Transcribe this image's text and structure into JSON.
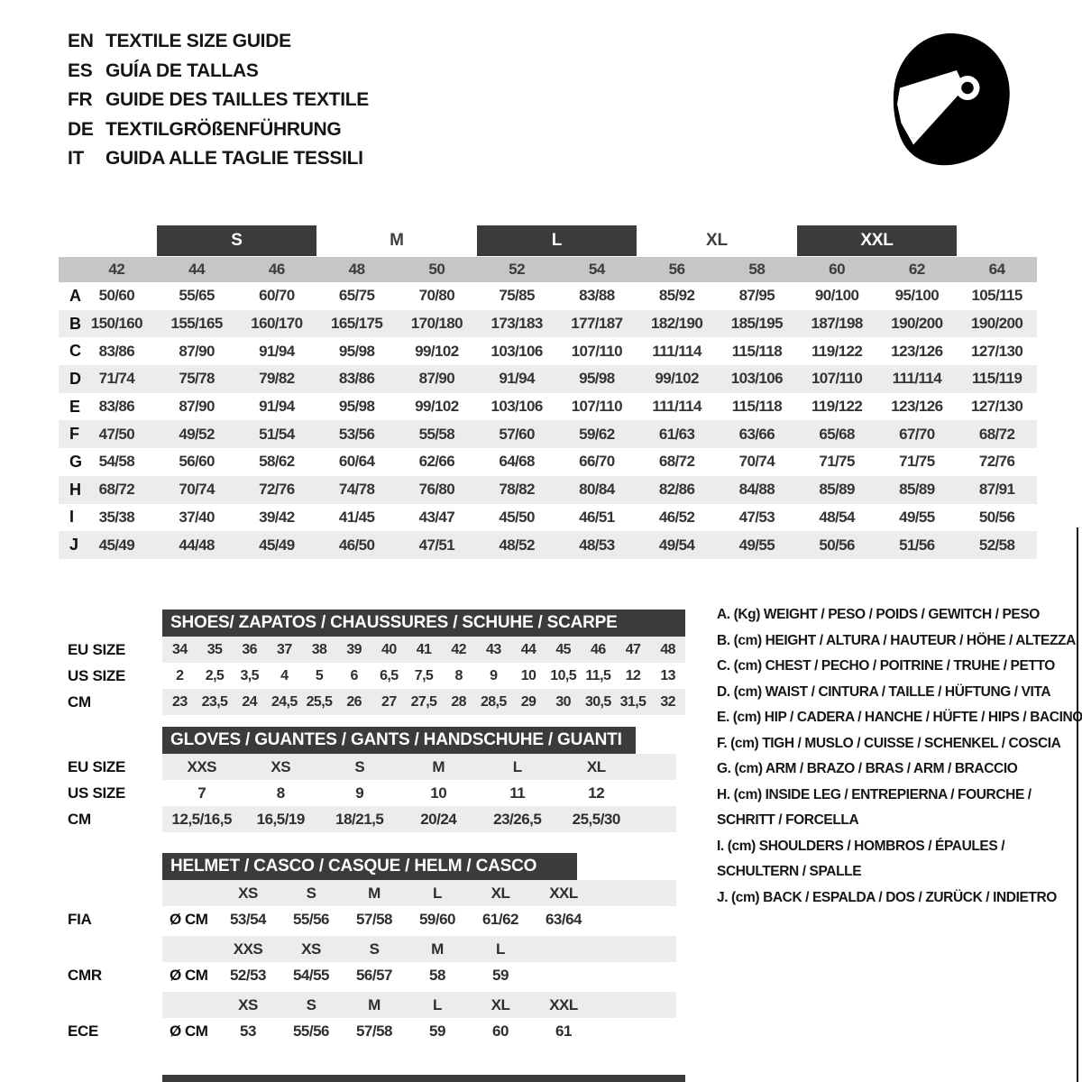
{
  "header": {
    "languages": [
      {
        "code": "EN",
        "title": "TEXTILE SIZE GUIDE"
      },
      {
        "code": "ES",
        "title": "GUÍA DE TALLAS"
      },
      {
        "code": "FR",
        "title": "GUIDE DES TAILLES TEXTILE"
      },
      {
        "code": "DE",
        "title": "TEXTILGRÖßENFÜHRUNG"
      },
      {
        "code": "IT",
        "title": "GUIDA ALLE TAGLIE TESSILI"
      }
    ]
  },
  "colors": {
    "dark_bar": "#3b3b3b",
    "band_gray": "#c6c6c6",
    "stripe_gray": "#ececec",
    "text": "#2f2f2f",
    "helmet_icon": "#000000"
  },
  "size_table": {
    "size_groups": [
      {
        "label": "S",
        "start": 1,
        "span": 2,
        "boxed": true
      },
      {
        "label": "M",
        "start": 3,
        "span": 2,
        "boxed": false
      },
      {
        "label": "L",
        "start": 5,
        "span": 2,
        "boxed": true
      },
      {
        "label": "XL",
        "start": 7,
        "span": 2,
        "boxed": false
      },
      {
        "label": "XXL",
        "start": 9,
        "span": 2,
        "boxed": true
      }
    ],
    "columns": [
      "42",
      "44",
      "46",
      "48",
      "50",
      "52",
      "54",
      "56",
      "58",
      "60",
      "62",
      "64"
    ],
    "rows": [
      {
        "label": "A",
        "values": [
          "50/60",
          "55/65",
          "60/70",
          "65/75",
          "70/80",
          "75/85",
          "83/88",
          "85/92",
          "87/95",
          "90/100",
          "95/100",
          "105/115"
        ]
      },
      {
        "label": "B",
        "values": [
          "150/160",
          "155/165",
          "160/170",
          "165/175",
          "170/180",
          "173/183",
          "177/187",
          "182/190",
          "185/195",
          "187/198",
          "190/200",
          "190/200"
        ]
      },
      {
        "label": "C",
        "values": [
          "83/86",
          "87/90",
          "91/94",
          "95/98",
          "99/102",
          "103/106",
          "107/110",
          "111/114",
          "115/118",
          "119/122",
          "123/126",
          "127/130"
        ]
      },
      {
        "label": "D",
        "values": [
          "71/74",
          "75/78",
          "79/82",
          "83/86",
          "87/90",
          "91/94",
          "95/98",
          "99/102",
          "103/106",
          "107/110",
          "111/114",
          "115/119"
        ]
      },
      {
        "label": "E",
        "values": [
          "83/86",
          "87/90",
          "91/94",
          "95/98",
          "99/102",
          "103/106",
          "107/110",
          "111/114",
          "115/118",
          "119/122",
          "123/126",
          "127/130"
        ]
      },
      {
        "label": "F",
        "values": [
          "47/50",
          "49/52",
          "51/54",
          "53/56",
          "55/58",
          "57/60",
          "59/62",
          "61/63",
          "63/66",
          "65/68",
          "67/70",
          "68/72"
        ]
      },
      {
        "label": "G",
        "values": [
          "54/58",
          "56/60",
          "58/62",
          "60/64",
          "62/66",
          "64/68",
          "66/70",
          "68/72",
          "70/74",
          "71/75",
          "71/75",
          "72/76"
        ]
      },
      {
        "label": "H",
        "values": [
          "68/72",
          "70/74",
          "72/76",
          "74/78",
          "76/80",
          "78/82",
          "80/84",
          "82/86",
          "84/88",
          "85/89",
          "85/89",
          "87/91"
        ]
      },
      {
        "label": "I",
        "values": [
          "35/38",
          "37/40",
          "39/42",
          "41/45",
          "43/47",
          "45/50",
          "46/51",
          "46/52",
          "47/53",
          "48/54",
          "49/55",
          "50/56"
        ]
      },
      {
        "label": "J",
        "values": [
          "45/49",
          "44/48",
          "45/49",
          "46/50",
          "47/51",
          "48/52",
          "48/53",
          "49/54",
          "49/55",
          "50/56",
          "51/56",
          "52/58"
        ]
      }
    ]
  },
  "shoes": {
    "title": "SHOES/ ZAPATOS / CHAUSSURES / SCHUHE / SCARPE",
    "rows": [
      {
        "label": "EU SIZE",
        "values": [
          "34",
          "35",
          "36",
          "37",
          "38",
          "39",
          "40",
          "41",
          "42",
          "43",
          "44",
          "45",
          "46",
          "47",
          "48"
        ]
      },
      {
        "label": "US SIZE",
        "values": [
          "2",
          "2,5",
          "3,5",
          "4",
          "5",
          "6",
          "6,5",
          "7,5",
          "8",
          "9",
          "10",
          "10,5",
          "11,5",
          "12",
          "13"
        ]
      },
      {
        "label": "CM",
        "values": [
          "23",
          "23,5",
          "24",
          "24,5",
          "25,5",
          "26",
          "27",
          "27,5",
          "28",
          "28,5",
          "29",
          "30",
          "30,5",
          "31,5",
          "32"
        ]
      }
    ]
  },
  "gloves": {
    "title": "GLOVES / GUANTES / GANTS / HANDSCHUHE / GUANTI",
    "rows": [
      {
        "label": "EU SIZE",
        "values": [
          "XXS",
          "XS",
          "S",
          "M",
          "L",
          "XL"
        ]
      },
      {
        "label": "US SIZE",
        "values": [
          "7",
          "8",
          "9",
          "10",
          "11",
          "12"
        ]
      },
      {
        "label": "CM",
        "values": [
          "12,5/16,5",
          "16,5/19",
          "18/21,5",
          "20/24",
          "23/26,5",
          "25,5/30"
        ]
      }
    ]
  },
  "helmet": {
    "title": "HELMET / CASCO / CASQUE / HELM / CASCO",
    "standards": [
      {
        "label": "FIA",
        "unit": "Ø CM",
        "sizes": [
          "XS",
          "S",
          "M",
          "L",
          "XL",
          "XXL"
        ],
        "values": [
          "53/54",
          "55/56",
          "57/58",
          "59/60",
          "61/62",
          "63/64"
        ]
      },
      {
        "label": "CMR",
        "unit": "Ø CM",
        "sizes": [
          "XXS",
          "XS",
          "S",
          "M",
          "L",
          ""
        ],
        "values": [
          "52/53",
          "54/55",
          "56/57",
          "58",
          "59",
          ""
        ]
      },
      {
        "label": "ECE",
        "unit": "Ø CM",
        "sizes": [
          "XS",
          "S",
          "M",
          "L",
          "XL",
          "XXL"
        ],
        "values": [
          "53",
          "55/56",
          "57/58",
          "59",
          "60",
          "61"
        ]
      }
    ]
  },
  "legend": {
    "items": [
      {
        "lines": [
          "A. (Kg) WEIGHT / PESO / POIDS / GEWITCH / PESO"
        ]
      },
      {
        "lines": [
          "B. (cm) HEIGHT / ALTURA / HAUTEUR / HÖHE / ALTEZZA"
        ]
      },
      {
        "lines": [
          "C. (cm) CHEST / PECHO / POITRINE / TRUHE / PETTO"
        ]
      },
      {
        "lines": [
          "D. (cm) WAIST / CINTURA / TAILLE / HÜFTUNG / VITA"
        ]
      },
      {
        "lines": [
          "E. (cm) HIP / CADERA / HANCHE / HÜFTE / HIPS / BACINO"
        ]
      },
      {
        "lines": [
          "F. (cm) TIGH / MUSLO / CUISSE / SCHENKEL / COSCIA"
        ]
      },
      {
        "lines": [
          "G. (cm) ARM / BRAZO / BRAS / ARM / BRACCIO"
        ]
      },
      {
        "lines": [
          "H. (cm) INSIDE LEG / ENTREPIERNA / FOURCHE /",
          "SCHRITT / FORCELLA"
        ]
      },
      {
        "lines": [
          "I. (cm) SHOULDERS / HOMBROS / ÉPAULES /",
          "SCHULTERN / SPALLE"
        ]
      },
      {
        "lines": [
          "J. (cm) BACK / ESPALDA / DOS / ZURÜCK / INDIETRO"
        ]
      }
    ]
  }
}
